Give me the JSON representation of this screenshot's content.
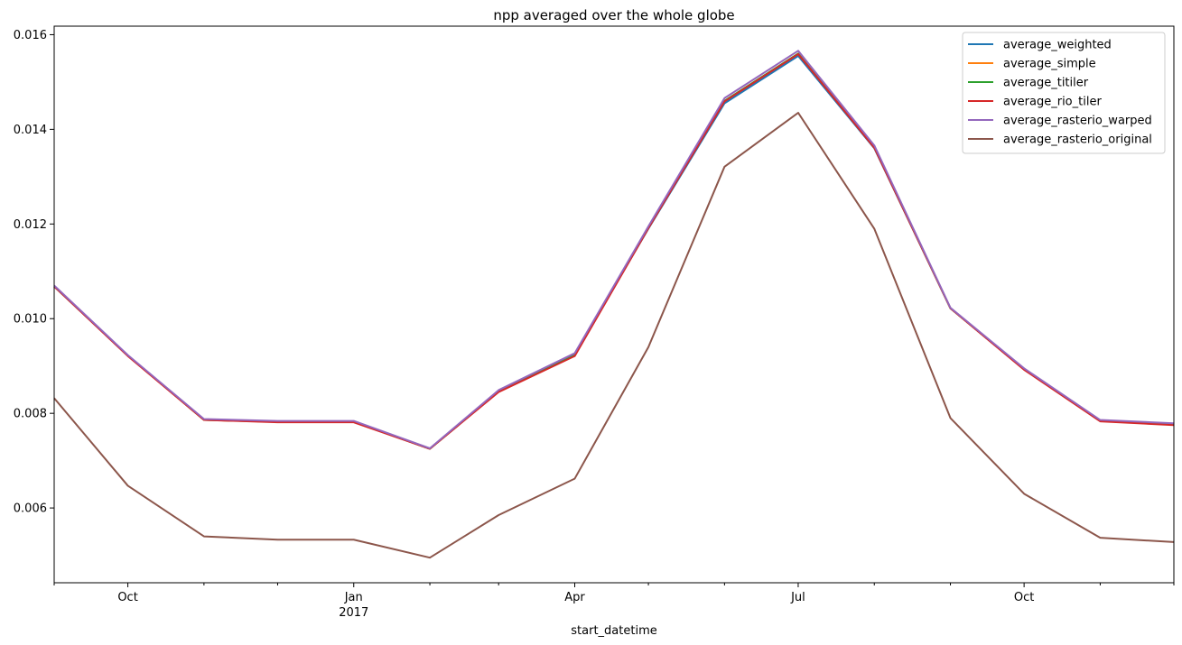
{
  "chart_data": {
    "type": "line",
    "title": "npp averaged over the whole globe",
    "xlabel": "start_datetime",
    "ylabel": "",
    "x": [
      "2016-09-01",
      "2016-10-01",
      "2016-11-01",
      "2016-12-01",
      "2017-01-01",
      "2017-02-01",
      "2017-03-01",
      "2017-04-01",
      "2017-05-01",
      "2017-06-01",
      "2017-07-01",
      "2017-08-01",
      "2017-09-01",
      "2017-10-01",
      "2017-11-01",
      "2017-12-01"
    ],
    "xlim": [
      "2016-09-01",
      "2017-12-01"
    ],
    "ylim": [
      0.00442,
      0.01618
    ],
    "y_ticks": [
      0.006,
      0.008,
      0.01,
      0.012,
      0.014,
      0.016
    ],
    "y_tick_labels": [
      "0.006",
      "0.008",
      "0.010",
      "0.012",
      "0.014",
      "0.016"
    ],
    "x_major_ticks": [
      {
        "date": "2016-10-01",
        "label": "Oct",
        "sublabel": ""
      },
      {
        "date": "2017-01-01",
        "label": "Jan",
        "sublabel": "2017"
      },
      {
        "date": "2017-04-01",
        "label": "Apr",
        "sublabel": ""
      },
      {
        "date": "2017-07-01",
        "label": "Jul",
        "sublabel": ""
      },
      {
        "date": "2017-10-01",
        "label": "Oct",
        "sublabel": ""
      }
    ],
    "x_minor_ticks": [
      "2016-09-01",
      "2016-11-01",
      "2016-12-01",
      "2017-02-01",
      "2017-03-01",
      "2017-05-01",
      "2017-06-01",
      "2017-08-01",
      "2017-09-01",
      "2017-11-01",
      "2017-12-01"
    ],
    "grid": false,
    "legend_position": "top-right",
    "series": [
      {
        "name": "average_weighted",
        "color": "#1f77b4",
        "values": [
          0.01068,
          0.00922,
          0.00787,
          0.00783,
          0.00783,
          0.00725,
          0.00847,
          0.00926,
          0.0119,
          0.01455,
          0.01555,
          0.0136,
          0.01022,
          0.00893,
          0.00785,
          0.00777
        ]
      },
      {
        "name": "average_simple",
        "color": "#ff7f0e",
        "values": [
          0.01068,
          0.00922,
          0.00786,
          0.00782,
          0.00782,
          0.00725,
          0.00846,
          0.00922,
          0.01192,
          0.0146,
          0.0156,
          0.01362,
          0.01022,
          0.00893,
          0.00784,
          0.00776
        ]
      },
      {
        "name": "average_titiler",
        "color": "#2ca02c",
        "values": [
          0.01068,
          0.00922,
          0.00786,
          0.00782,
          0.00782,
          0.00725,
          0.00846,
          0.00922,
          0.01192,
          0.0146,
          0.0156,
          0.01362,
          0.01022,
          0.00893,
          0.00784,
          0.00776
        ]
      },
      {
        "name": "average_rio_tiler",
        "color": "#d62728",
        "values": [
          0.01068,
          0.00921,
          0.00786,
          0.00781,
          0.00781,
          0.00725,
          0.00845,
          0.00921,
          0.01191,
          0.01459,
          0.01559,
          0.01361,
          0.01022,
          0.00892,
          0.00783,
          0.00775
        ]
      },
      {
        "name": "average_rasterio_warped",
        "color": "#9467bd",
        "values": [
          0.0107,
          0.00923,
          0.00788,
          0.00784,
          0.00784,
          0.00726,
          0.00849,
          0.00927,
          0.01195,
          0.01466,
          0.01566,
          0.01366,
          0.01023,
          0.00895,
          0.00786,
          0.00779
        ]
      },
      {
        "name": "average_rasterio_original",
        "color": "#8c564b",
        "values": [
          0.00832,
          0.00647,
          0.0054,
          0.00533,
          0.00533,
          0.00495,
          0.00585,
          0.00662,
          0.0094,
          0.01321,
          0.01435,
          0.0119,
          0.0079,
          0.0063,
          0.00537,
          0.00528
        ]
      }
    ]
  }
}
